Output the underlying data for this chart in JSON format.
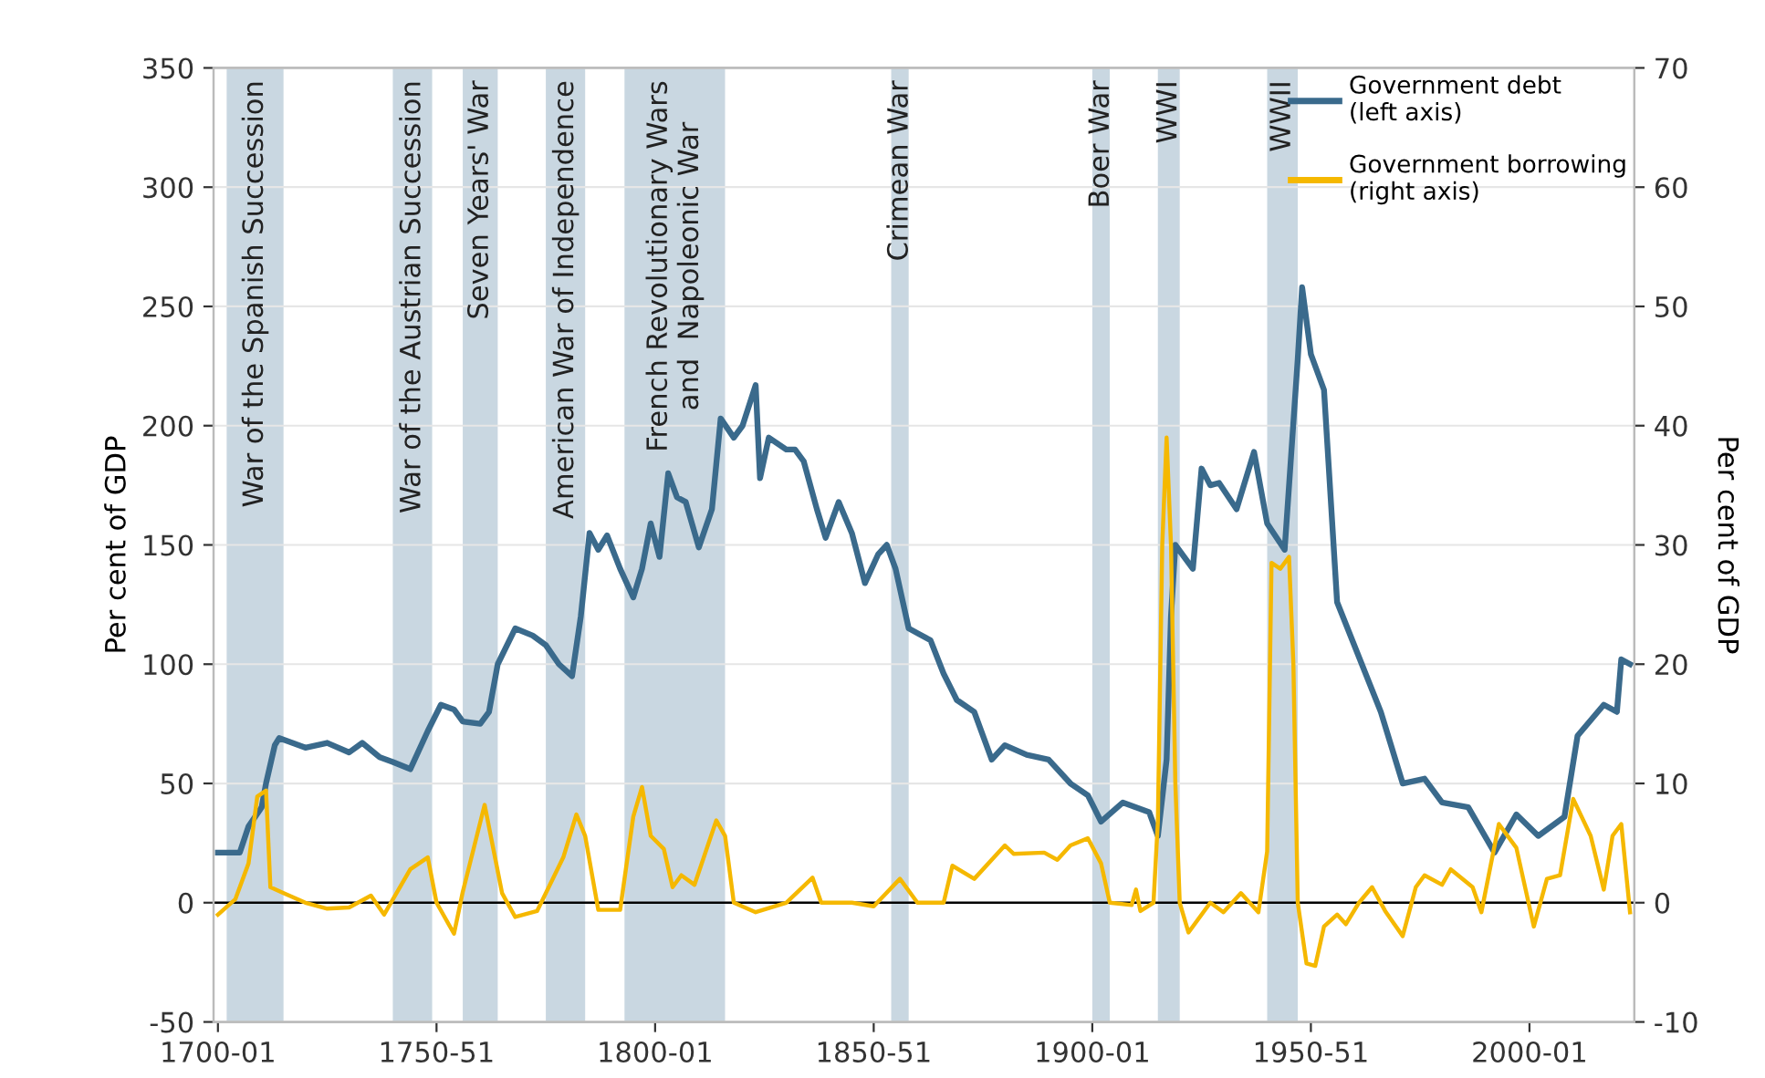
{
  "chart_data": {
    "type": "line",
    "xlim": [
      "1699",
      "2024"
    ],
    "ylim": [
      -50,
      350
    ],
    "yticks": [
      -50,
      0,
      50,
      100,
      150,
      200,
      250,
      300,
      350
    ],
    "y2lim": [
      -10,
      70
    ],
    "y2ticks": [
      -10,
      0,
      10,
      20,
      30,
      40,
      50,
      60,
      70
    ],
    "xticks": [
      {
        "value": "1700",
        "label": "1700-01"
      },
      {
        "value": "1750",
        "label": "1750-51"
      },
      {
        "value": "1800",
        "label": "1800-01"
      },
      {
        "value": "1850",
        "label": "1850-51"
      },
      {
        "value": "1900",
        "label": "1900-01"
      },
      {
        "value": "1950",
        "label": "1950-51"
      },
      {
        "value": "2000",
        "label": "2000-01"
      }
    ],
    "ylabel": "Per cent of GDP",
    "y2label": "Per cent of GDP",
    "grid": "y",
    "legend": "top right",
    "series": [
      {
        "name": "Government debt\n(left axis)",
        "color": "#3a6a8c",
        "x": [
          "1700",
          "1705",
          "1707",
          "1710",
          "1711",
          "1713",
          "1714",
          "1720",
          "1725",
          "1730",
          "1733",
          "1737",
          "1740",
          "1744",
          "1748",
          "1751",
          "1754",
          "1756",
          "1760",
          "1762",
          "1764",
          "1768",
          "1772",
          "1775",
          "1778",
          "1781",
          "1783",
          "1785",
          "1787",
          "1789",
          "1792",
          "1795",
          "1797",
          "1799",
          "1801",
          "1803",
          "1805",
          "1807",
          "1810",
          "1813",
          "1815",
          "1818",
          "1820",
          "1823",
          "1824",
          "1826",
          "1830",
          "1832",
          "1834",
          "1837",
          "1839",
          "1842",
          "1845",
          "1848",
          "1851",
          "1853",
          "1855",
          "1858",
          "1860",
          "1863",
          "1866",
          "1869",
          "1873",
          "1877",
          "1880",
          "1885",
          "1890",
          "1895",
          "1899",
          "1902",
          "1907",
          "1913",
          "1915",
          "1917",
          "1918",
          "1919",
          "1923",
          "1925",
          "1927",
          "1929",
          "1933",
          "1937",
          "1940",
          "1944",
          "1947",
          "1948",
          "1950",
          "1953",
          "1956",
          "1966",
          "1971",
          "1976",
          "1980",
          "1986",
          "1992",
          "1997",
          "2002",
          "2008",
          "2011",
          "2017",
          "2020",
          "2021",
          "2023"
        ],
        "values": [
          21,
          21,
          32,
          40,
          50,
          66,
          69,
          65,
          67,
          63,
          67,
          61,
          59,
          56,
          72,
          83,
          81,
          76,
          75,
          80,
          100,
          115,
          112,
          108,
          100,
          95,
          120,
          155,
          148,
          154,
          140,
          128,
          140,
          159,
          145,
          180,
          170,
          168,
          149,
          165,
          203,
          195,
          200,
          217,
          178,
          195,
          190,
          190,
          185,
          165,
          153,
          168,
          155,
          134,
          146,
          150,
          140,
          115,
          113,
          110,
          96,
          85,
          80,
          60,
          66,
          62,
          60,
          50,
          45,
          34,
          42,
          38,
          28,
          60,
          120,
          150,
          140,
          182,
          175,
          176,
          165,
          189,
          159,
          148,
          228,
          258,
          230,
          215,
          126,
          80,
          50,
          52,
          42,
          40,
          21,
          37,
          28,
          36,
          70,
          83,
          80,
          102,
          100
        ]
      },
      {
        "name": "Government borrowing\n(right axis)",
        "color": "#f5b800",
        "axis": "y2",
        "x": [
          "1700",
          "1704",
          "1707",
          "1709",
          "1711",
          "1712",
          "1715",
          "1720",
          "1725",
          "1730",
          "1735",
          "1738",
          "1744",
          "1748",
          "1750",
          "1754",
          "1756",
          "1761",
          "1765",
          "1768",
          "1773",
          "1779",
          "1782",
          "1784",
          "1787",
          "1792",
          "1795",
          "1797",
          "1799",
          "1802",
          "1804",
          "1806",
          "1809",
          "1814",
          "1816",
          "1818",
          "1823",
          "1830",
          "1836",
          "1838",
          "1845",
          "1850",
          "1856",
          "1860",
          "1866",
          "1868",
          "1873",
          "1880",
          "1882",
          "1889",
          "1892",
          "1895",
          "1899",
          "1902",
          "1904",
          "1909",
          "1910",
          "1911",
          "1914",
          "1915",
          "1916",
          "1917",
          "1918",
          "1919",
          "1920",
          "1922",
          "1927",
          "1930",
          "1934",
          "1938",
          "1940",
          "1941",
          "1943",
          "1945",
          "1946",
          "1947",
          "1949",
          "1951",
          "1953",
          "1956",
          "1958",
          "1961",
          "1964",
          "1967",
          "1971",
          "1974",
          "1976",
          "1980",
          "1982",
          "1987",
          "1989",
          "1993",
          "1997",
          "2001",
          "2004",
          "2007",
          "2010",
          "2014",
          "2017",
          "2019",
          "2021",
          "2023"
        ],
        "values": [
          -1,
          0.3,
          3.3,
          8.9,
          9.4,
          1.3,
          0.8,
          0,
          -0.5,
          -0.4,
          0.6,
          -1,
          2.8,
          3.8,
          0,
          -2.6,
          0.9,
          8.2,
          0.8,
          -1.2,
          -0.7,
          3.8,
          7.4,
          5.6,
          -0.6,
          -0.6,
          7.2,
          9.7,
          5.6,
          4.5,
          1.3,
          2.3,
          1.5,
          6.9,
          5.6,
          0,
          -0.8,
          0,
          2.1,
          0,
          0,
          -0.3,
          2,
          0,
          0,
          3.1,
          2,
          4.8,
          4.1,
          4.2,
          3.6,
          4.8,
          5.4,
          3.3,
          0,
          -0.2,
          1.1,
          -0.7,
          0,
          6.8,
          30,
          39,
          30,
          10,
          0,
          -2.5,
          0,
          -0.8,
          0.8,
          -0.8,
          4.3,
          28.5,
          28,
          29,
          20,
          0,
          -5.1,
          -5.3,
          -2,
          -1,
          -1.8,
          0,
          1.3,
          -0.7,
          -2.8,
          1.3,
          2.3,
          1.5,
          2.8,
          1.3,
          -0.8,
          6.6,
          4.6,
          -2,
          2,
          2.3,
          8.7,
          5.6,
          1.1,
          5.6,
          6.6,
          -0.8
        ]
      }
    ],
    "bands": [
      {
        "axis": "x",
        "from": "1702",
        "to": "1715",
        "label": "War of the Spanish Succession",
        "color": "#c9d7e1"
      },
      {
        "axis": "x",
        "from": "1740",
        "to": "1749",
        "label": "War of the Austrian Succession",
        "color": "#c9d7e1"
      },
      {
        "axis": "x",
        "from": "1756",
        "to": "1764",
        "label": "Seven Years' War",
        "color": "#c9d7e1"
      },
      {
        "axis": "x",
        "from": "1775",
        "to": "1784",
        "label": "American War of Independence",
        "color": "#c9d7e1"
      },
      {
        "axis": "x",
        "from": "1793",
        "to": "1816",
        "label": "French Revolutionary Wars\nand  Napoleonic War",
        "color": "#c9d7e1"
      },
      {
        "axis": "x",
        "from": "1854",
        "to": "1858",
        "label": "Crimean War",
        "color": "#c9d7e1"
      },
      {
        "axis": "x",
        "from": "1900",
        "to": "1904",
        "label": "Boer War",
        "color": "#c9d7e1"
      },
      {
        "axis": "x",
        "from": "1915",
        "to": "1920",
        "label": "WWI",
        "color": "#c9d7e1"
      },
      {
        "axis": "x",
        "from": "1940",
        "to": "1947",
        "label": "WWII",
        "color": "#c9d7e1"
      }
    ],
    "ref_lines": [
      {
        "axis": "y",
        "value": 0,
        "color": "#000000",
        "line_style": "solid"
      }
    ]
  }
}
